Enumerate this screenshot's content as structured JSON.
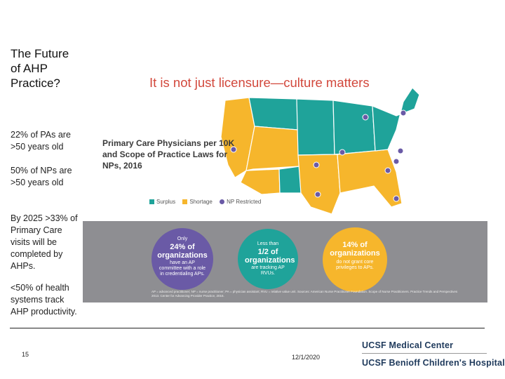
{
  "slide": {
    "title": "The Future of AHP Practice?",
    "bullet1a": "22% of PAs are >50 years old",
    "bullet1b": "50% of NPs are >50 years old",
    "bullet2": "By 2025 >33% of Primary Care visits will be completed by AHPs.",
    "bullet3": "<50% of health systems track AHP productivity.",
    "page_number": "15",
    "date": "12/1/2020",
    "logo_line1": "UCSF Medical Center",
    "logo_line2": "UCSF Benioff Children's Hospital"
  },
  "infographic": {
    "headline": "It is not just licensure—culture matters",
    "map_title": "Primary Care Physicians per 10K and Scope of Practice Laws for NPs, 2016",
    "legend": {
      "surplus": "Surplus",
      "shortage": "Shortage",
      "restricted": "NP Restricted"
    },
    "colors": {
      "surplus": "#1fa39a",
      "shortage": "#f6b62c",
      "restricted": "#6a5aa6",
      "headline": "#d2483c",
      "band": "#8e8e92"
    },
    "stat1": {
      "pre": "Only",
      "big": "24% of organizations",
      "post": "have an AP committee with a role in credentialing APs."
    },
    "stat2": {
      "pre": "Less than",
      "big": "1/2 of organizations",
      "post": "are tracking AP RVUs."
    },
    "stat3": {
      "big": "14% of organizations",
      "post": "do not grant core privileges to APs."
    },
    "footnote": "AP = advanced practitioner; NP = nurse practitioner; PA = physician assistant; RVU = relative value unit. Sources: American Nurse Practitioner Foundation. Scope of Nurse Practitioners. Practice Trends and Perspectives 2013. Center for Advancing Provider Practice, 2016."
  }
}
